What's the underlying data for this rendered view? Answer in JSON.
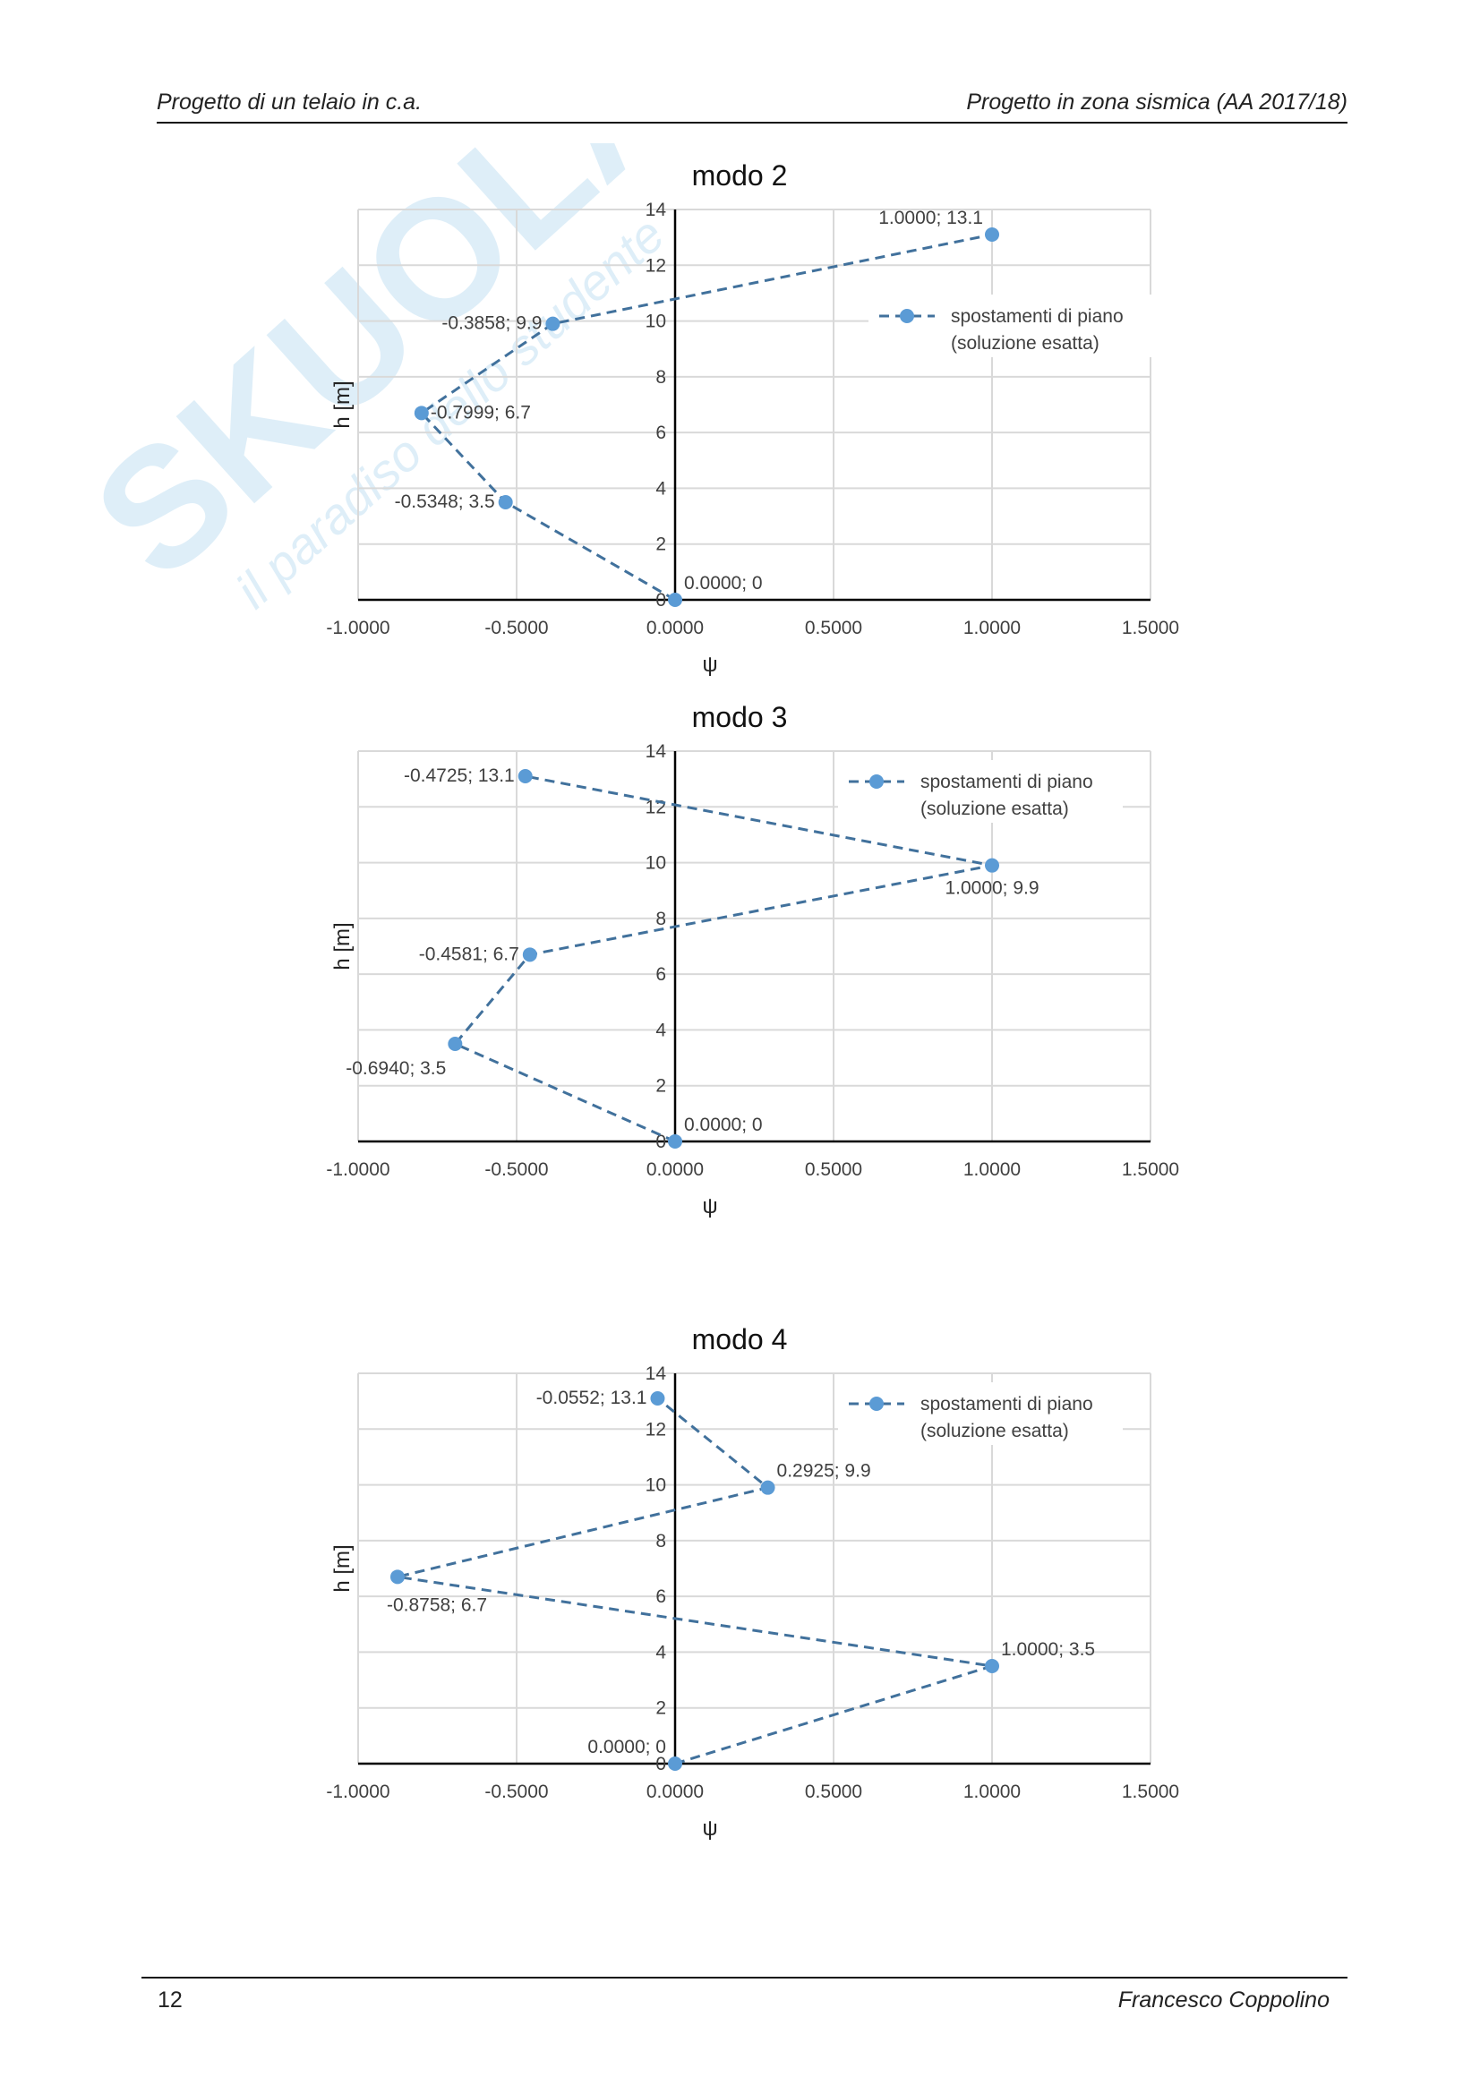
{
  "header": {
    "left": "Progetto di un telaio in c.a.",
    "right": "Progetto in zona sismica (AA 2017/18)"
  },
  "footer": {
    "page": "12",
    "author": "Francesco Coppolino"
  },
  "watermark": {
    "brand": "SKUOLA.net",
    "tagline": "il paradiso dello studente",
    "color": "#6fb7e0"
  },
  "colors": {
    "series": "#5b9bd5",
    "line": "#41719c",
    "grid": "#d9d9d9",
    "axis": "#000000"
  },
  "chart_data": [
    {
      "type": "scatter",
      "title": "modo 2",
      "xlabel": "ψ",
      "ylabel": "h [m]",
      "xlim": [
        -1.0,
        1.5
      ],
      "ylim": [
        0,
        14
      ],
      "xticks": [
        -1.0,
        -0.5,
        0.0,
        0.5,
        1.0,
        1.5
      ],
      "xtick_labels": [
        "-1.0000",
        "-0.5000",
        "0.0000",
        "0.5000",
        "1.0000",
        "1.5000"
      ],
      "yticks": [
        0,
        2,
        4,
        6,
        8,
        10,
        12,
        14
      ],
      "ytick_labels": [
        "0",
        "2",
        "4",
        "6",
        "8",
        "10",
        "12",
        "14"
      ],
      "grid": true,
      "legend_position": "right",
      "series": [
        {
          "name": "spostamenti di piano (soluzione esatta)",
          "name_lines": [
            "spostamenti di piano",
            "(soluzione esatta)"
          ],
          "line_style": "dashed",
          "x": [
            0.0,
            -0.5348,
            -0.7999,
            -0.3858,
            1.0
          ],
          "y": [
            0,
            3.5,
            6.7,
            9.9,
            13.1
          ],
          "labels": [
            "0.0000; 0",
            "-0.5348; 3.5",
            "-0.7999; 6.7",
            "-0.3858; 9.9",
            "1.0000; 13.1"
          ],
          "label_positions": [
            "above-right",
            "left",
            "right",
            "left",
            "above-left"
          ]
        }
      ]
    },
    {
      "type": "scatter",
      "title": "modo 3",
      "xlabel": "ψ",
      "ylabel": "h [m]",
      "xlim": [
        -1.0,
        1.5
      ],
      "ylim": [
        0,
        14
      ],
      "xticks": [
        -1.0,
        -0.5,
        0.0,
        0.5,
        1.0,
        1.5
      ],
      "xtick_labels": [
        "-1.0000",
        "-0.5000",
        "0.0000",
        "0.5000",
        "1.0000",
        "1.5000"
      ],
      "yticks": [
        0,
        2,
        4,
        6,
        8,
        10,
        12,
        14
      ],
      "ytick_labels": [
        "0",
        "2",
        "4",
        "6",
        "8",
        "10",
        "12",
        "14"
      ],
      "grid": true,
      "legend_position": "top-right",
      "series": [
        {
          "name": "spostamenti di piano (soluzione esatta)",
          "name_lines": [
            "spostamenti di piano",
            "(soluzione esatta)"
          ],
          "line_style": "dashed",
          "x": [
            0.0,
            -0.694,
            -0.4581,
            1.0,
            -0.4725
          ],
          "y": [
            0,
            3.5,
            6.7,
            9.9,
            13.1
          ],
          "labels": [
            "0.0000; 0",
            "-0.6940; 3.5",
            "-0.4581; 6.7",
            "1.0000; 9.9",
            "-0.4725; 13.1"
          ],
          "label_positions": [
            "above-right",
            "below-left",
            "left",
            "below",
            "left"
          ]
        }
      ]
    },
    {
      "type": "scatter",
      "title": "modo 4",
      "xlabel": "ψ",
      "ylabel": "h [m]",
      "xlim": [
        -1.0,
        1.5
      ],
      "ylim": [
        0,
        14
      ],
      "xticks": [
        -1.0,
        -0.5,
        0.0,
        0.5,
        1.0,
        1.5
      ],
      "xtick_labels": [
        "-1.0000",
        "-0.5000",
        "0.0000",
        "0.5000",
        "1.0000",
        "1.5000"
      ],
      "yticks": [
        0,
        2,
        4,
        6,
        8,
        10,
        12,
        14
      ],
      "ytick_labels": [
        "0",
        "2",
        "4",
        "6",
        "8",
        "10",
        "12",
        "14"
      ],
      "grid": true,
      "legend_position": "top-right",
      "series": [
        {
          "name": "spostamenti di piano (soluzione esatta)",
          "name_lines": [
            "spostamenti di piano",
            "(soluzione esatta)"
          ],
          "line_style": "dashed",
          "x": [
            0.0,
            1.0,
            -0.8758,
            0.2925,
            -0.0552
          ],
          "y": [
            0,
            3.5,
            6.7,
            9.9,
            13.1
          ],
          "labels": [
            "0.0000; 0",
            "1.0000; 3.5",
            "-0.8758; 6.7",
            "0.2925; 9.9",
            "-0.0552; 13.1"
          ],
          "label_positions": [
            "above-left",
            "above-right",
            "below-right",
            "above-right",
            "left"
          ]
        }
      ]
    }
  ]
}
